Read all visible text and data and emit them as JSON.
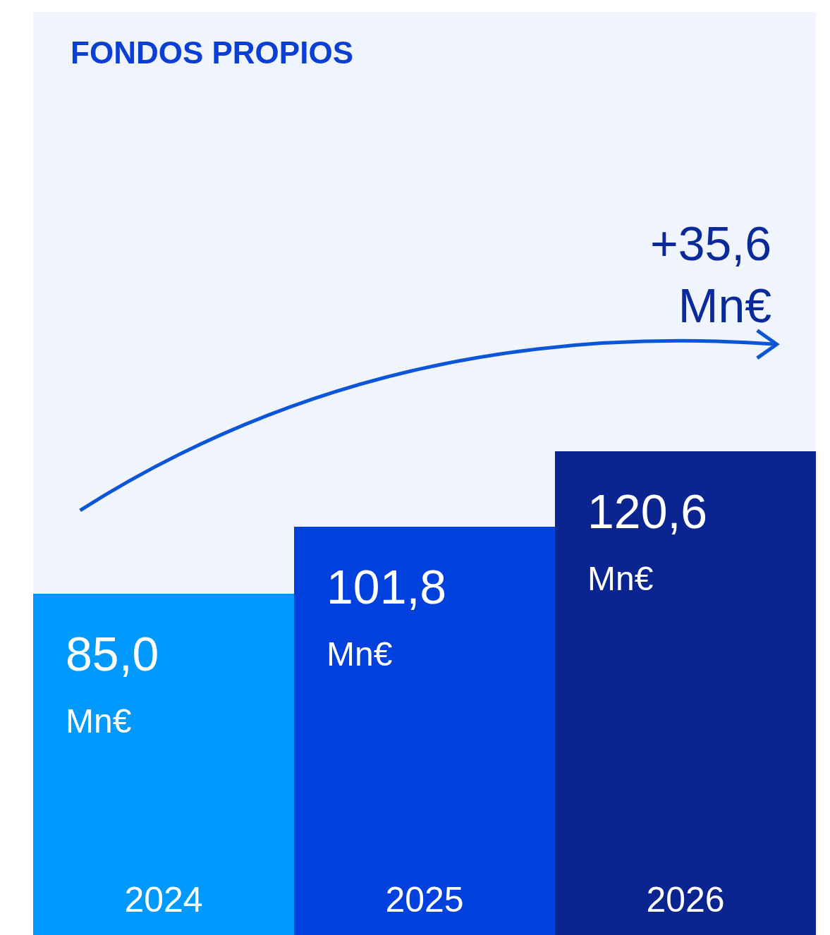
{
  "chart_data": {
    "type": "bar",
    "title": "FONDOS PROPIOS",
    "categories": [
      "2024",
      "2025",
      "2026"
    ],
    "values": [
      85.0,
      101.8,
      120.6
    ],
    "colors": [
      "#0099ff",
      "#0040dd",
      "#0a2590"
    ],
    "value_labels": [
      "85,0 Mn€",
      "101,8 Mn€",
      "120,6 Mn€"
    ],
    "ylim": [
      0,
      230
    ],
    "annotations": [
      "+35,6 Mn€"
    ]
  }
}
